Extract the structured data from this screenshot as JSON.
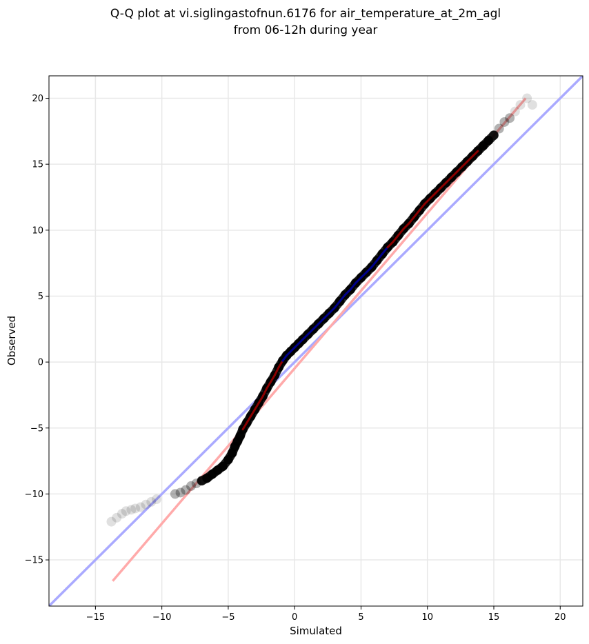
{
  "chart_data": {
    "type": "scatter",
    "title": [
      "Q-Q plot at vi.siglingastofnun.6176 for air_temperature_at_2m_agl",
      "from 06-12h during year"
    ],
    "xlabel": "Simulated",
    "ylabel": "Observed",
    "xlim": [
      -18.5,
      21.7
    ],
    "ylim": [
      -18.5,
      21.7
    ],
    "xticks": [
      -15,
      -10,
      -5,
      0,
      5,
      10,
      15,
      20
    ],
    "yticks": [
      -15,
      -10,
      -5,
      0,
      5,
      10,
      15,
      20
    ],
    "tick_labels": [
      "−15",
      "−10",
      "−5",
      "0",
      "5",
      "10",
      "15",
      "20"
    ],
    "grid": true,
    "colors": {
      "points": "#000000",
      "identity_line": "#aaaaff",
      "fit_line": "#ffaaaa",
      "lower_segment": "#8b0000",
      "mid_segment": "#00008b",
      "upper_segment": "#8b0000"
    },
    "series": [
      {
        "kind": "quantile_points",
        "x": [
          -13.8,
          -13.4,
          -13.0,
          -12.7,
          -12.3,
          -12.0,
          -11.6,
          -11.2,
          -10.8,
          -10.4,
          -9.0,
          -8.6,
          -8.2,
          -7.8,
          -7.4,
          -7.0,
          -6.6,
          -6.2,
          -5.8,
          -5.4,
          -5.0,
          -4.7,
          -4.5,
          -4.3,
          -4.1,
          -3.9,
          -3.6,
          -3.3,
          -3.0,
          -2.7,
          -2.4,
          -2.1,
          -1.8,
          -1.5,
          -1.2,
          -0.9,
          -0.6,
          -0.3,
          0.0,
          0.3,
          0.6,
          1.0,
          1.4,
          1.8,
          2.2,
          2.6,
          3.0,
          3.4,
          3.8,
          4.2,
          4.6,
          5.0,
          5.4,
          5.8,
          6.2,
          6.6,
          7.0,
          7.4,
          7.8,
          8.2,
          8.6,
          9.0,
          9.4,
          9.8,
          10.2,
          10.6,
          11.0,
          11.4,
          11.8,
          12.2,
          12.6,
          13.0,
          13.4,
          13.8,
          14.2,
          14.6,
          15.0,
          15.4,
          15.8,
          16.2,
          16.6,
          17.0,
          17.5,
          17.9
        ],
        "y": [
          -12.1,
          -11.8,
          -11.5,
          -11.3,
          -11.2,
          -11.1,
          -11.0,
          -10.8,
          -10.6,
          -10.4,
          -10.0,
          -9.9,
          -9.7,
          -9.4,
          -9.2,
          -9.0,
          -8.8,
          -8.5,
          -8.2,
          -7.9,
          -7.4,
          -6.9,
          -6.4,
          -6.0,
          -5.6,
          -5.1,
          -4.6,
          -4.1,
          -3.6,
          -3.1,
          -2.6,
          -2.0,
          -1.5,
          -1.0,
          -0.4,
          0.1,
          0.5,
          0.8,
          1.1,
          1.4,
          1.7,
          2.1,
          2.5,
          2.9,
          3.3,
          3.7,
          4.1,
          4.6,
          5.1,
          5.5,
          6.0,
          6.4,
          6.8,
          7.2,
          7.7,
          8.2,
          8.7,
          9.1,
          9.6,
          10.1,
          10.5,
          11.0,
          11.5,
          12.0,
          12.4,
          12.8,
          13.2,
          13.6,
          14.0,
          14.4,
          14.8,
          15.2,
          15.6,
          16.0,
          16.4,
          16.8,
          17.2,
          17.7,
          18.2,
          18.5,
          19.0,
          19.5,
          20.0,
          19.5
        ]
      },
      {
        "kind": "identity_line",
        "x": [
          -18.5,
          21.7
        ],
        "y": [
          -18.5,
          21.7
        ]
      },
      {
        "kind": "fit_line",
        "x": [
          -13.7,
          17.4
        ],
        "y": [
          -16.6,
          20.0
        ]
      }
    ]
  }
}
